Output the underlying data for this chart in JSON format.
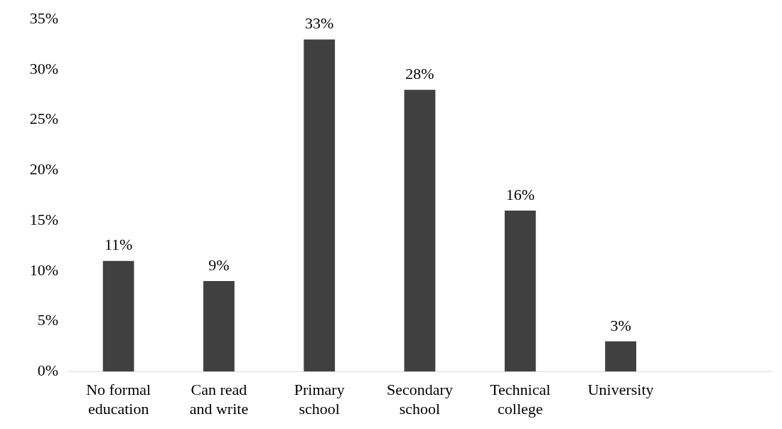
{
  "chart_data": {
    "type": "bar",
    "categories": [
      "No formal education",
      "Can read and write",
      "Primary school",
      "Secondary school",
      "Technical college",
      "University",
      null
    ],
    "values": [
      11,
      9,
      33,
      28,
      16,
      3,
      null
    ],
    "value_labels": [
      "11%",
      "9%",
      "33%",
      "28%",
      "16%",
      "3%",
      null
    ],
    "color": "#404040",
    "ylim": [
      0,
      35
    ],
    "yticks": [
      {
        "value": 0,
        "label": "0%"
      },
      {
        "value": 5,
        "label": "5%"
      },
      {
        "value": 10,
        "label": "10%"
      },
      {
        "value": 15,
        "label": "15%"
      },
      {
        "value": 20,
        "label": "20%"
      },
      {
        "value": 25,
        "label": "25%"
      },
      {
        "value": 30,
        "label": "30%"
      },
      {
        "value": 35,
        "label": "35%"
      }
    ],
    "grid": false,
    "legend": false
  }
}
